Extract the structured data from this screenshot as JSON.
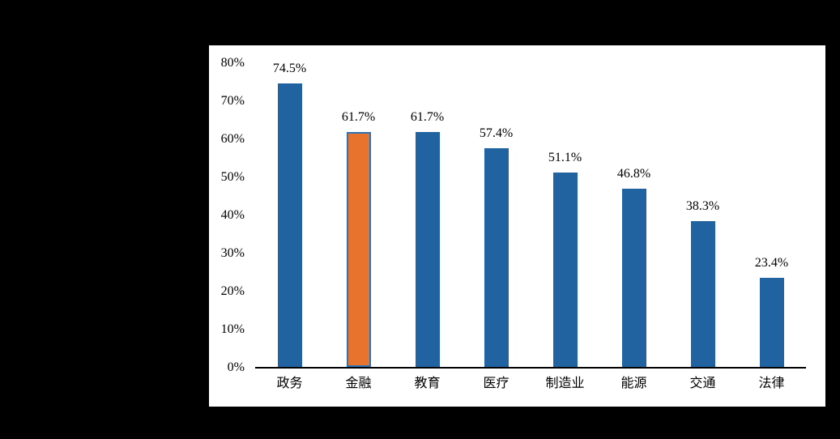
{
  "chart_data": {
    "type": "bar",
    "categories": [
      "政务",
      "金融",
      "教育",
      "医疗",
      "制造业",
      "能源",
      "交通",
      "法律"
    ],
    "values": [
      74.5,
      61.7,
      61.7,
      57.4,
      51.1,
      46.8,
      38.3,
      23.4
    ],
    "data_labels": [
      "74.5%",
      "61.7%",
      "61.7%",
      "57.4%",
      "51.1%",
      "46.8%",
      "38.3%",
      "23.4%"
    ],
    "highlight_index": 1,
    "title": "",
    "xlabel": "",
    "ylabel": "",
    "ylim": [
      0,
      80
    ],
    "yticks": [
      0,
      10,
      20,
      30,
      40,
      50,
      60,
      70,
      80
    ],
    "ytick_labels": [
      "0%",
      "10%",
      "20%",
      "30%",
      "40%",
      "50%",
      "60%",
      "70%",
      "80%"
    ],
    "grid": false,
    "legend": "none",
    "colors": {
      "bar": "#2063A0",
      "highlight_bar": "#E8732D",
      "highlight_border": "#2E74B5",
      "axis": "#000000",
      "text": "#000000",
      "panel_background": "#FFFFFF",
      "canvas_background": "#000000"
    }
  }
}
